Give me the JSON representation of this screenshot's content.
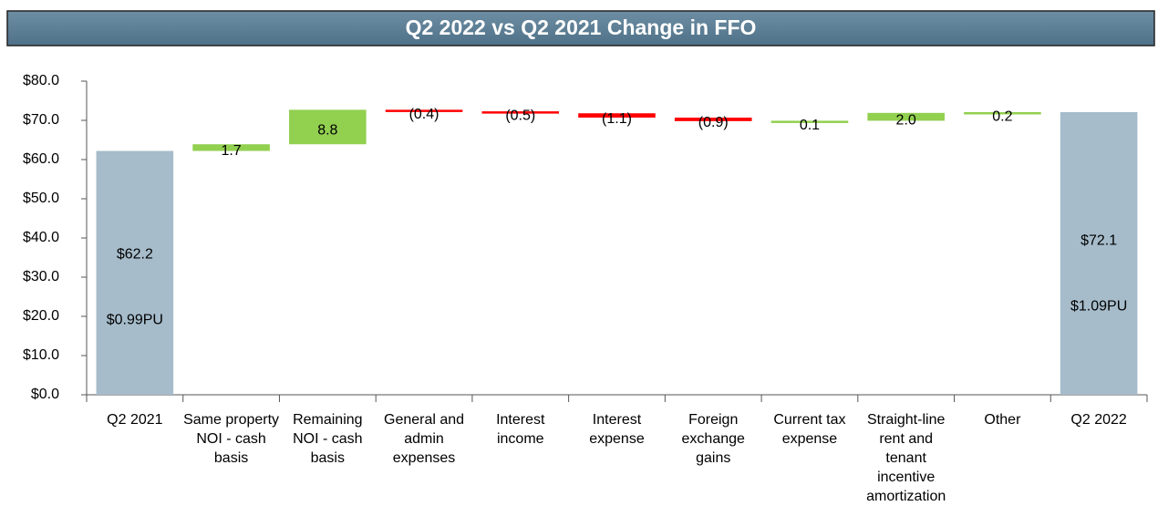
{
  "chart_data": {
    "type": "waterfall",
    "title": "Q2 2022 vs Q2 2021 Change in FFO",
    "categories": [
      "Q2 2021",
      "Same property NOI - cash basis",
      "Remaining NOI - cash basis",
      "General and admin expenses",
      "Interest income",
      "Interest expense",
      "Foreign exchange gains",
      "Current tax expense",
      "Straight-line rent and tenant incentive amortization",
      "Other",
      "Q2 2022"
    ],
    "values": [
      62.2,
      1.7,
      8.8,
      -0.4,
      -0.5,
      -1.1,
      -0.9,
      0.1,
      2.0,
      0.2,
      72.1
    ],
    "value_labels": [
      "$62.2",
      "1.7",
      "8.8",
      "(0.4)",
      "(0.5)",
      "(1.1)",
      "(0.9)",
      "0.1",
      "2.0",
      "0.2",
      "$72.1"
    ],
    "measure": [
      "total",
      "relative",
      "relative",
      "relative",
      "relative",
      "relative",
      "relative",
      "relative",
      "relative",
      "relative",
      "total"
    ],
    "bar_notes": [
      "$0.99PU",
      null,
      null,
      null,
      null,
      null,
      null,
      null,
      null,
      null,
      "$1.09PU"
    ],
    "colors": {
      "total": "#a6bccb",
      "increase": "#92d050",
      "decrease": "#ff0000"
    },
    "ylim": [
      0,
      80
    ],
    "yticks": [
      {
        "value": 0,
        "label": "$0.0"
      },
      {
        "value": 10,
        "label": "$10.0"
      },
      {
        "value": 20,
        "label": "$20.0"
      },
      {
        "value": 30,
        "label": "$30.0"
      },
      {
        "value": 40,
        "label": "$40.0"
      },
      {
        "value": 50,
        "label": "$50.0"
      },
      {
        "value": 60,
        "label": "$60.0"
      },
      {
        "value": 70,
        "label": "$70.0"
      },
      {
        "value": 80,
        "label": "$80.0"
      }
    ],
    "grid": false
  }
}
